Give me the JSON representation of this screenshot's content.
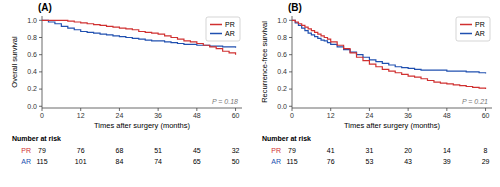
{
  "chart_data": [
    {
      "type": "step",
      "title": "(A)",
      "x_label": "Times after surgery (months)",
      "y_label": "Overall survival",
      "annotations": [
        "P = 0.18"
      ],
      "xlim": [
        0,
        62
      ],
      "ylim": [
        -0.02,
        1.05
      ],
      "xticks": [
        0,
        12,
        24,
        36,
        48,
        60
      ],
      "yticks": [
        {
          "value": 0.0,
          "label": "0.0"
        },
        0.2,
        0.4,
        0.6,
        0.8,
        {
          "value": 1.0,
          "label": "1.0"
        }
      ],
      "grid": false,
      "legend": "upper right",
      "series": [
        {
          "name": "PR",
          "color": "#d03030",
          "x": [
            0,
            3,
            6,
            8,
            10,
            12,
            14,
            16,
            18,
            20,
            22,
            24,
            26,
            28,
            30,
            32,
            34,
            36,
            38,
            40,
            42,
            44,
            46,
            48,
            50,
            52,
            54,
            56,
            58,
            60
          ],
          "values": [
            1.0,
            1.0,
            1.0,
            0.99,
            0.98,
            0.97,
            0.96,
            0.95,
            0.94,
            0.93,
            0.92,
            0.91,
            0.9,
            0.89,
            0.87,
            0.86,
            0.85,
            0.84,
            0.82,
            0.8,
            0.78,
            0.76,
            0.75,
            0.73,
            0.71,
            0.69,
            0.67,
            0.64,
            0.62,
            0.6
          ]
        },
        {
          "name": "AR",
          "color": "#2050b0",
          "x": [
            0,
            2,
            4,
            6,
            8,
            10,
            12,
            14,
            16,
            18,
            20,
            22,
            24,
            26,
            28,
            30,
            32,
            34,
            36,
            38,
            40,
            42,
            44,
            46,
            48,
            50,
            52,
            54,
            56,
            58,
            60
          ],
          "values": [
            1.0,
            0.98,
            0.96,
            0.93,
            0.91,
            0.89,
            0.87,
            0.86,
            0.85,
            0.84,
            0.83,
            0.82,
            0.81,
            0.8,
            0.79,
            0.78,
            0.77,
            0.76,
            0.76,
            0.75,
            0.74,
            0.73,
            0.72,
            0.72,
            0.71,
            0.71,
            0.7,
            0.7,
            0.69,
            0.69,
            0.68
          ]
        }
      ],
      "number_at_risk": {
        "title": "Number at risk",
        "times": [
          0,
          12,
          24,
          36,
          48,
          60
        ],
        "rows": [
          {
            "name": "PR",
            "color": "#d03030",
            "values": [
              79,
              76,
              68,
              51,
              45,
              32
            ]
          },
          {
            "name": "AR",
            "color": "#2050b0",
            "values": [
              115,
              101,
              84,
              74,
              65,
              50
            ]
          }
        ]
      }
    },
    {
      "type": "step",
      "title": "(B)",
      "x_label": "Times after surgery (months)",
      "y_label": "Recurrence-free survival",
      "annotations": [
        "P = 0.21"
      ],
      "xlim": [
        0,
        62
      ],
      "ylim": [
        -0.02,
        1.05
      ],
      "xticks": [
        0,
        12,
        24,
        36,
        48,
        60
      ],
      "yticks": [
        {
          "value": 0.0,
          "label": "0.0"
        },
        0.2,
        0.4,
        0.6,
        0.8,
        {
          "value": 1.0,
          "label": "1.0"
        }
      ],
      "grid": false,
      "legend": "upper right",
      "series": [
        {
          "name": "PR",
          "color": "#d03030",
          "x": [
            0,
            1,
            2,
            3,
            4,
            5,
            6,
            7,
            8,
            9,
            10,
            11,
            12,
            14,
            16,
            18,
            20,
            22,
            24,
            26,
            28,
            30,
            32,
            34,
            36,
            38,
            40,
            42,
            44,
            46,
            48,
            50,
            52,
            54,
            56,
            58,
            60
          ],
          "values": [
            1.0,
            0.98,
            0.96,
            0.94,
            0.92,
            0.9,
            0.88,
            0.86,
            0.84,
            0.82,
            0.8,
            0.78,
            0.75,
            0.71,
            0.67,
            0.62,
            0.57,
            0.53,
            0.49,
            0.46,
            0.43,
            0.41,
            0.39,
            0.37,
            0.35,
            0.34,
            0.32,
            0.3,
            0.28,
            0.27,
            0.26,
            0.25,
            0.24,
            0.23,
            0.22,
            0.21,
            0.2
          ]
        },
        {
          "name": "AR",
          "color": "#2050b0",
          "x": [
            0,
            1,
            2,
            3,
            4,
            5,
            6,
            7,
            8,
            9,
            10,
            11,
            12,
            14,
            16,
            18,
            20,
            22,
            24,
            26,
            28,
            30,
            32,
            34,
            36,
            38,
            40,
            42,
            44,
            46,
            48,
            50,
            52,
            54,
            56,
            58,
            60
          ],
          "values": [
            1.0,
            0.97,
            0.94,
            0.91,
            0.88,
            0.85,
            0.83,
            0.81,
            0.79,
            0.77,
            0.76,
            0.74,
            0.72,
            0.69,
            0.66,
            0.63,
            0.6,
            0.57,
            0.54,
            0.52,
            0.5,
            0.48,
            0.46,
            0.45,
            0.44,
            0.43,
            0.42,
            0.42,
            0.42,
            0.42,
            0.41,
            0.41,
            0.41,
            0.4,
            0.4,
            0.39,
            0.38
          ]
        }
      ],
      "number_at_risk": {
        "title": "Number at risk",
        "times": [
          0,
          12,
          24,
          36,
          48,
          60
        ],
        "rows": [
          {
            "name": "PR",
            "color": "#d03030",
            "values": [
              79,
              41,
              31,
              20,
              14,
              8
            ]
          },
          {
            "name": "AR",
            "color": "#2050b0",
            "values": [
              115,
              76,
              53,
              43,
              39,
              29
            ]
          }
        ]
      }
    }
  ]
}
